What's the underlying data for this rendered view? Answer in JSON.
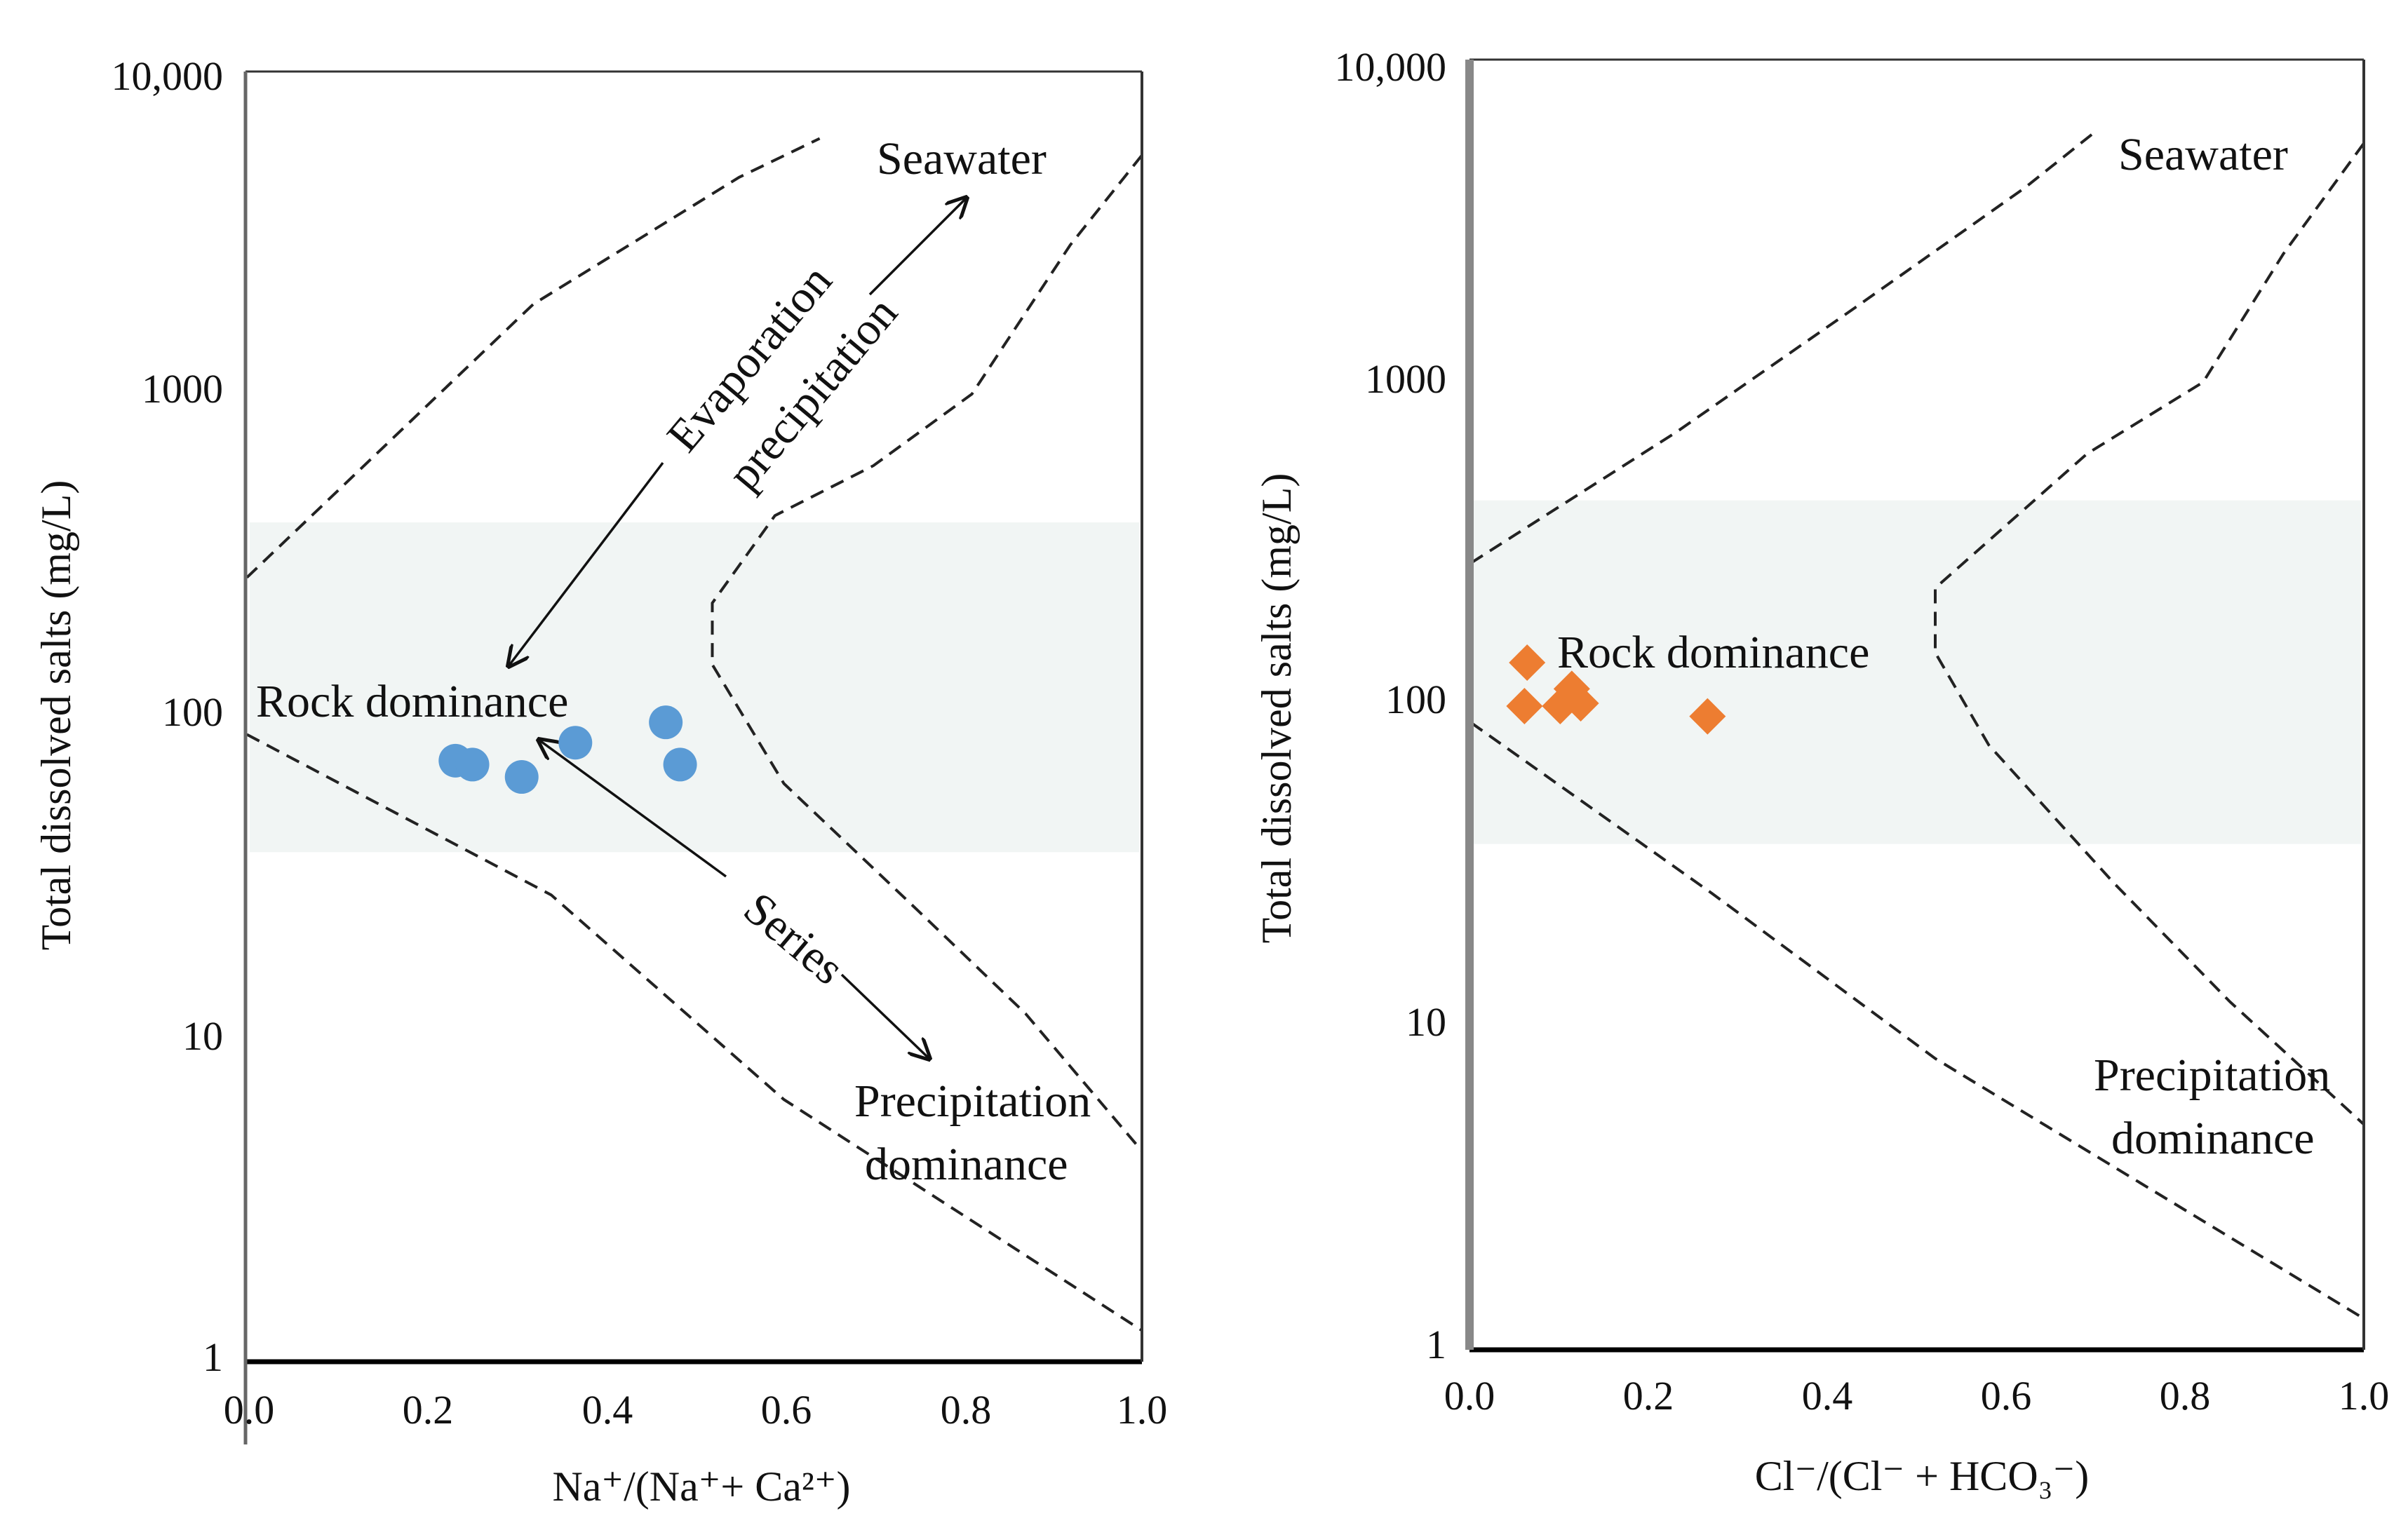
{
  "chart_data": [
    {
      "type": "scatter",
      "panel": "left",
      "xlabel": "Na⁺/(Na⁺+ Ca²⁺)",
      "ylabel": "Total dissolved salts (mg/L)",
      "xlim": [
        0,
        1.0
      ],
      "ylim": [
        1,
        10000
      ],
      "yscale": "log",
      "x_ticks": [
        "0.0",
        "0.2",
        "0.4",
        "0.6",
        "0.8",
        "1.0"
      ],
      "y_ticks": [
        "1",
        "10",
        "100",
        "1000",
        "10,000"
      ],
      "marker_color": "#5b9bd5",
      "marker": "circle",
      "series": [
        {
          "name": "samples",
          "points": [
            [
              0.233,
              73
            ],
            [
              0.252,
              71
            ],
            [
              0.307,
              65
            ],
            [
              0.367,
              83
            ],
            [
              0.468,
              96
            ],
            [
              0.484,
              71
            ]
          ]
        }
      ],
      "boundaries": {
        "upper": [
          [
            0,
            270
          ],
          [
            0.32,
            1900
          ],
          [
            0.55,
            4700
          ],
          [
            0.64,
            6200
          ]
        ],
        "lower": [
          [
            0,
            88
          ],
          [
            0.34,
            28
          ],
          [
            0.6,
            6.5
          ],
          [
            1.0,
            1.25
          ]
        ],
        "inner": [
          [
            1.0,
            5500
          ],
          [
            0.92,
            2900
          ],
          [
            0.81,
            1000
          ],
          [
            0.7,
            600
          ],
          [
            0.59,
            420
          ],
          [
            0.52,
            225
          ],
          [
            0.52,
            145
          ],
          [
            0.6,
            62
          ],
          [
            0.75,
            25
          ],
          [
            0.87,
            12
          ],
          [
            1.0,
            4.5
          ]
        ]
      },
      "shaded_band": [
        38,
        400
      ],
      "annotations": [
        {
          "text": "Seawater"
        },
        {
          "text": "Evaporation"
        },
        {
          "text": "precipitation"
        },
        {
          "text": "Rock dominance"
        },
        {
          "text": "Series"
        },
        {
          "text": "Precipitation"
        },
        {
          "text": "dominance"
        }
      ]
    },
    {
      "type": "scatter",
      "panel": "right",
      "xlabel": "Cl⁻/(Cl⁻ + HCO₃⁻)",
      "ylabel": "Total dissolved salts (mg/L)",
      "xlim": [
        0,
        1.0
      ],
      "ylim": [
        1,
        10000
      ],
      "yscale": "log",
      "x_ticks": [
        "0.0",
        "0.2",
        "0.4",
        "0.6",
        "0.8",
        "1.0"
      ],
      "y_ticks": [
        "1",
        "10",
        "100",
        "1000",
        "10,000"
      ],
      "marker_color": "#ed7d31",
      "marker": "diamond",
      "series": [
        {
          "name": "samples",
          "points": [
            [
              0.063,
              135
            ],
            [
              0.06,
              99
            ],
            [
              0.1,
              99
            ],
            [
              0.113,
              112
            ],
            [
              0.123,
              101
            ],
            [
              0.265,
              92
            ]
          ]
        }
      ],
      "boundaries": {
        "upper": [
          [
            0,
            275
          ],
          [
            0.23,
            700
          ],
          [
            0.43,
            1700
          ],
          [
            0.62,
            4000
          ],
          [
            0.7,
            6000
          ]
        ],
        "lower": [
          [
            0,
            88
          ],
          [
            0.27,
            26
          ],
          [
            0.52,
            8
          ],
          [
            1.0,
            1.25
          ]
        ],
        "inner": [
          [
            1.0,
            5500
          ],
          [
            0.91,
            2500
          ],
          [
            0.82,
            1000
          ],
          [
            0.69,
            600
          ],
          [
            0.52,
            230
          ],
          [
            0.52,
            145
          ],
          [
            0.58,
            75
          ],
          [
            0.72,
            28
          ],
          [
            0.85,
            12
          ],
          [
            1.0,
            5
          ]
        ]
      },
      "shaded_band": [
        37,
        430
      ],
      "annotations": [
        {
          "text": "Seawater"
        },
        {
          "text": "Rock dominance"
        },
        {
          "text": "Precipitation"
        },
        {
          "text": "dominance"
        }
      ]
    }
  ]
}
